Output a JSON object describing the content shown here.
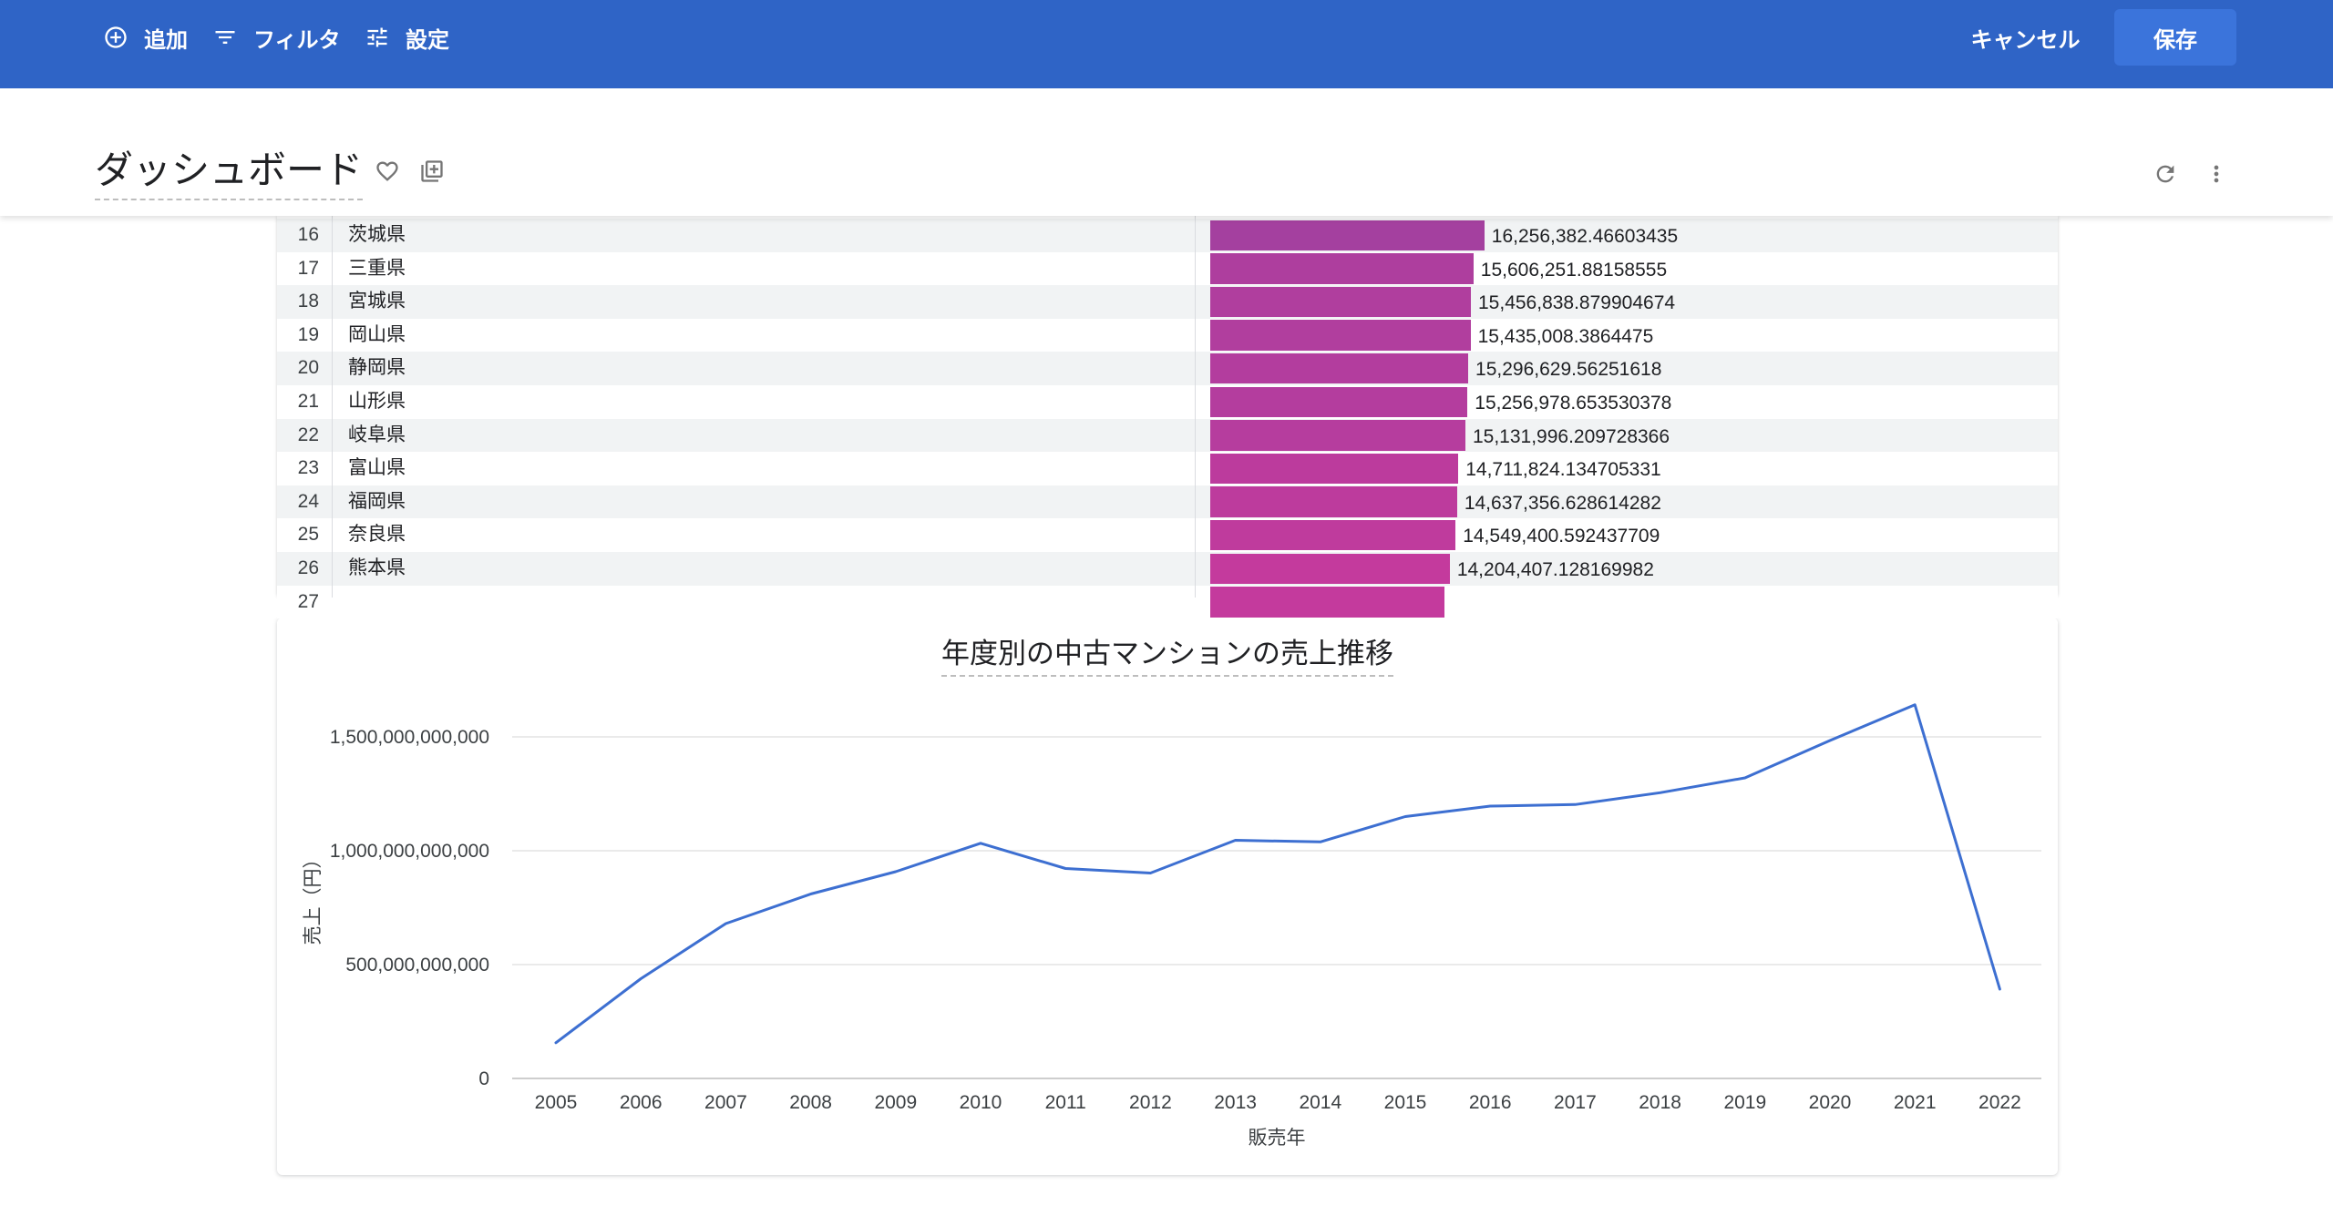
{
  "toolbar": {
    "add_label": "追加",
    "filter_label": "フィルタ",
    "settings_label": "設定",
    "cancel_label": "キャンセル",
    "save_label": "保存"
  },
  "header": {
    "title": "ダッシュボード"
  },
  "icons": {
    "add": "add-circle-icon",
    "filter": "filter-icon",
    "settings": "tune-icon",
    "favorite": "heart-icon",
    "library_add": "library-add-icon",
    "refresh": "refresh-icon",
    "more": "more-vert-icon"
  },
  "colors": {
    "toolbar_bg": "#2f64c6",
    "save_button": "#3b74db",
    "bar_high": "#a4409f",
    "bar_low": "#c43a9d",
    "line": "#3d6fd1"
  },
  "table": {
    "rows": [
      {
        "rank": "16",
        "name": "茨城県",
        "value": 16256382.46603435,
        "label": "16,256,382.46603435"
      },
      {
        "rank": "17",
        "name": "三重県",
        "value": 15606251.88158555,
        "label": "15,606,251.88158555"
      },
      {
        "rank": "18",
        "name": "宮城県",
        "value": 15456838.879904674,
        "label": "15,456,838.879904674"
      },
      {
        "rank": "19",
        "name": "岡山県",
        "value": 15435008.3864475,
        "label": "15,435,008.3864475"
      },
      {
        "rank": "20",
        "name": "静岡県",
        "value": 15296629.56251618,
        "label": "15,296,629.56251618"
      },
      {
        "rank": "21",
        "name": "山形県",
        "value": 15256978.653530378,
        "label": "15,256,978.653530378"
      },
      {
        "rank": "22",
        "name": "岐阜県",
        "value": 15131996.209728366,
        "label": "15,131,996.209728366"
      },
      {
        "rank": "23",
        "name": "富山県",
        "value": 14711824.134705331,
        "label": "14,711,824.134705331"
      },
      {
        "rank": "24",
        "name": "福岡県",
        "value": 14637356.628614282,
        "label": "14,637,356.628614282"
      },
      {
        "rank": "25",
        "name": "奈良県",
        "value": 14549400.592437709,
        "label": "14,549,400.592437709"
      },
      {
        "rank": "26",
        "name": "熊本県",
        "value": 14204407.128169982,
        "label": "14,204,407.128169982"
      },
      {
        "rank": "27",
        "value": 13870000
      }
    ]
  },
  "chart_data": {
    "type": "line",
    "title": "年度別の中古マンションの売上推移",
    "xlabel": "販売年",
    "ylabel": "売上（円）",
    "x": [
      "2005",
      "2006",
      "2007",
      "2008",
      "2009",
      "2010",
      "2011",
      "2012",
      "2013",
      "2014",
      "2015",
      "2016",
      "2017",
      "2018",
      "2019",
      "2020",
      "2021",
      "2022"
    ],
    "series": [
      {
        "values": [
          157000000000,
          438000000000,
          680000000000,
          810000000000,
          908000000000,
          1033000000000,
          922000000000,
          902000000000,
          1046000000000,
          1039000000000,
          1150000000000,
          1196000000000,
          1203000000000,
          1255000000000,
          1320000000000,
          1484000000000,
          1641000000000,
          392000000000
        ]
      }
    ],
    "yticks": [
      0,
      500000000000,
      1000000000000,
      1500000000000
    ],
    "ytick_labels": [
      "0",
      "500,000,000,000",
      "1,000,000,000,000",
      "1,500,000,000,000"
    ],
    "ylim": [
      0,
      1650000000000
    ],
    "grid": true,
    "legend": "none"
  }
}
